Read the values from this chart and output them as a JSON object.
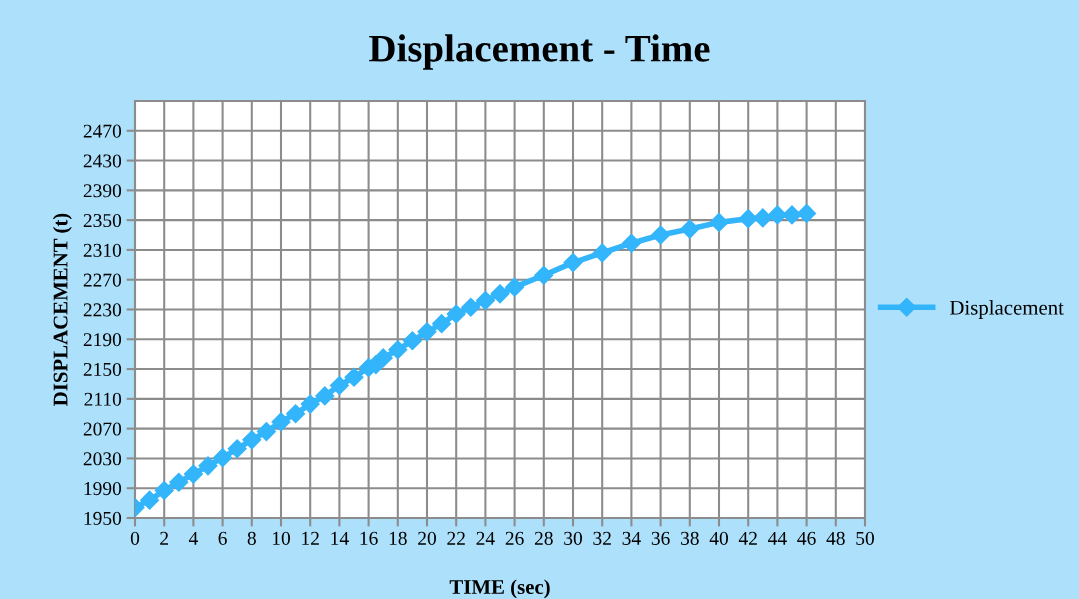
{
  "chart_data": {
    "type": "line",
    "title": "Displacement - Time",
    "xlabel": "TIME (sec)",
    "ylabel": "DISPLACEMENT (t)",
    "xlim": [
      0,
      50
    ],
    "xticks": [
      0,
      2,
      4,
      6,
      8,
      10,
      12,
      14,
      16,
      18,
      20,
      22,
      24,
      26,
      28,
      30,
      32,
      34,
      36,
      38,
      40,
      42,
      44,
      46,
      48,
      50
    ],
    "ylim": [
      1950,
      2510
    ],
    "yticks": [
      1950,
      1990,
      2030,
      2070,
      2110,
      2150,
      2190,
      2230,
      2270,
      2310,
      2350,
      2390,
      2430,
      2470
    ],
    "grid": true,
    "legend": "right",
    "marker": "diamond",
    "line_style": "solid",
    "series": [
      {
        "name": "Displacement",
        "color": "#33b5fb",
        "x": [
          0,
          1,
          2,
          3,
          4,
          5,
          6,
          7,
          8,
          9,
          10,
          11,
          12,
          13,
          14,
          15,
          16,
          16.5,
          17,
          18,
          19,
          20,
          21,
          22,
          23,
          24,
          25,
          26,
          28,
          30,
          32,
          34,
          36,
          38,
          40,
          42,
          43,
          44,
          45,
          46
        ],
        "values": [
          1964,
          1974,
          1987,
          1998,
          2009,
          2020,
          2031,
          2043,
          2055,
          2066,
          2079,
          2090,
          2103,
          2114,
          2128,
          2139,
          2152,
          2156,
          2165,
          2176,
          2188,
          2200,
          2211,
          2224,
          2233,
          2242,
          2251,
          2260,
          2276,
          2293,
          2306,
          2319,
          2330,
          2338,
          2347,
          2352,
          2353,
          2357,
          2357,
          2359
        ]
      }
    ]
  }
}
